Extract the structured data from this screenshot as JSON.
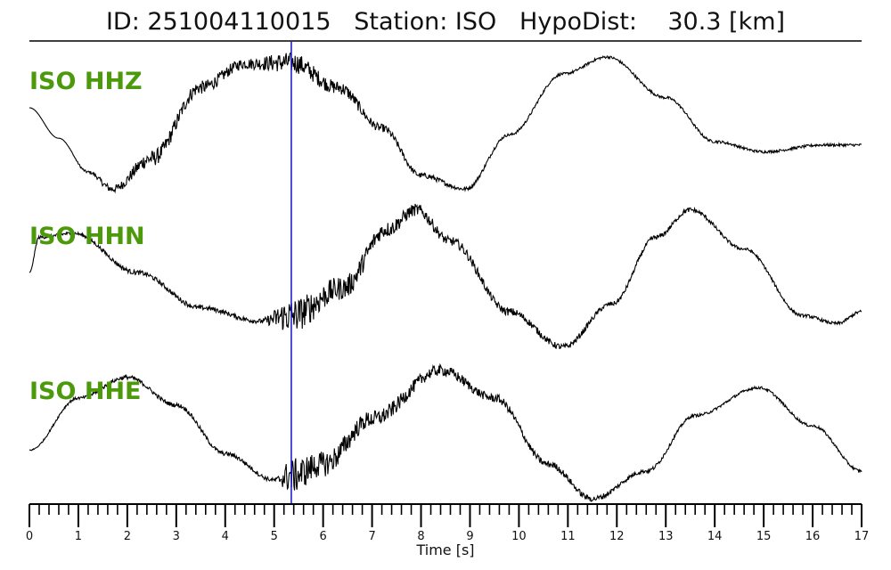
{
  "title": "ID: 251004110015   Station: ISO   HypoDist:    30.3 [km]",
  "colors": {
    "trace": "#000000",
    "pick_line": "#1f1fd1",
    "channel_label": "#4c9a0c"
  },
  "chart_data": {
    "type": "line",
    "xlabel": "Time [s]",
    "xlim": [
      0,
      17
    ],
    "x_ticks": [
      "0",
      "1",
      "2",
      "3",
      "4",
      "5",
      "6",
      "7",
      "8",
      "9",
      "10",
      "11",
      "12",
      "13",
      "14",
      "15",
      "16",
      "17"
    ],
    "pick_time": 5.35,
    "series": [
      {
        "name": "ISO HHZ",
        "x": [
          0,
          0.6,
          1.2,
          1.7,
          2.5,
          3.5,
          4.4,
          5.35,
          6.3,
          7.2,
          8.0,
          8.9,
          9.8,
          10.9,
          11.8,
          13.0,
          14.0,
          15.0,
          16.2,
          17.0
        ],
        "y": [
          0.25,
          -0.2,
          -0.7,
          -0.95,
          -0.5,
          0.55,
          0.9,
          0.92,
          0.55,
          -0.05,
          -0.75,
          -0.95,
          -0.15,
          0.75,
          1.0,
          0.4,
          -0.25,
          -0.4,
          -0.3,
          -0.3
        ],
        "noise": [
          0,
          0,
          0.02,
          0.06,
          0.12,
          0.1,
          0.08,
          0.15,
          0.1,
          0.06,
          0.04,
          0.03,
          0.02,
          0.02,
          0.02,
          0.02,
          0.02,
          0.02,
          0.02,
          0.02
        ]
      },
      {
        "name": "ISO HHN",
        "x": [
          0,
          0.2,
          0.9,
          2.2,
          3.5,
          4.7,
          5.35,
          6.4,
          7.3,
          7.9,
          8.6,
          9.8,
          10.9,
          11.9,
          12.8,
          13.5,
          14.6,
          15.8,
          16.5,
          17.0
        ],
        "y": [
          0.0,
          0.45,
          0.5,
          0.0,
          -0.45,
          -0.62,
          -0.55,
          -0.2,
          0.55,
          0.8,
          0.4,
          -0.5,
          -0.95,
          -0.4,
          0.45,
          0.8,
          0.3,
          -0.55,
          -0.65,
          -0.5
        ],
        "noise": [
          0,
          0.02,
          0.02,
          0.03,
          0.03,
          0.03,
          0.22,
          0.15,
          0.1,
          0.08,
          0.06,
          0.05,
          0.04,
          0.03,
          0.03,
          0.03,
          0.02,
          0.02,
          0.02,
          0.02
        ]
      },
      {
        "name": "ISO HHE",
        "x": [
          0,
          1.0,
          2.0,
          3.0,
          4.0,
          5.0,
          5.35,
          6.0,
          7.0,
          8.4,
          9.5,
          10.6,
          11.5,
          12.6,
          13.6,
          14.9,
          16.0,
          17.0
        ],
        "y": [
          -0.25,
          0.5,
          0.8,
          0.4,
          -0.3,
          -0.68,
          -0.62,
          -0.45,
          0.2,
          0.9,
          0.5,
          -0.45,
          -0.95,
          -0.55,
          0.25,
          0.65,
          0.1,
          -0.55
        ],
        "noise": [
          0.01,
          0.02,
          0.03,
          0.03,
          0.03,
          0.03,
          0.25,
          0.18,
          0.12,
          0.08,
          0.06,
          0.05,
          0.04,
          0.03,
          0.02,
          0.02,
          0.02,
          0.02
        ]
      }
    ]
  }
}
